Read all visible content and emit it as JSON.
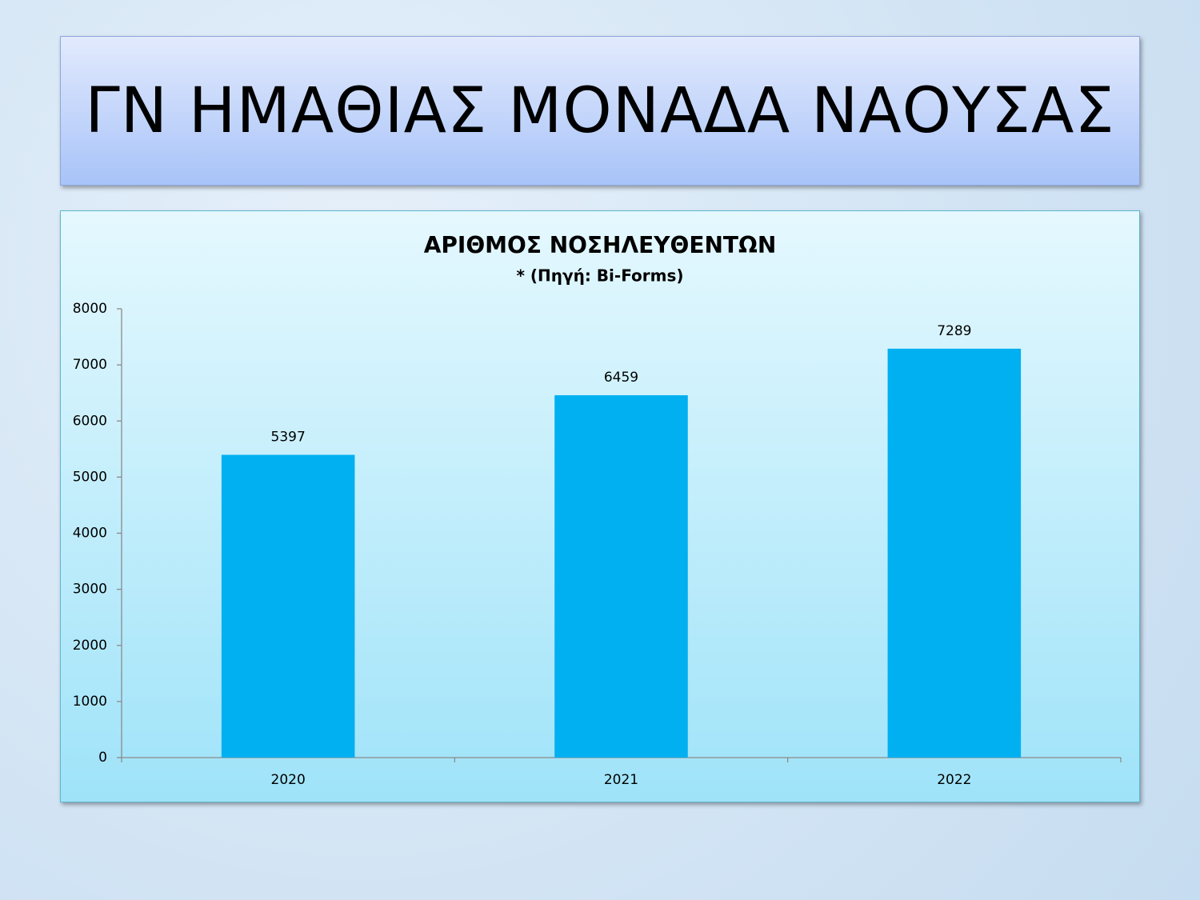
{
  "header": {
    "title": "ΓΝ ΗΜΑΘΙΑΣ ΜΟΝΑΔΑ ΝΑΟΥΣΑΣ"
  },
  "chart_data": {
    "type": "bar",
    "title": "ΑΡΙΘΜΟΣ ΝΟΣΗΛΕΥΘΕΝΤΩΝ",
    "subtitle": "* (Πηγή: Bi-Forms)",
    "categories": [
      "2020",
      "2021",
      "2022"
    ],
    "values": [
      5397,
      6459,
      7289
    ],
    "color": "#00b0f0",
    "ylim": [
      0,
      8000
    ],
    "yticks": [
      0,
      1000,
      2000,
      3000,
      4000,
      5000,
      6000,
      7000,
      8000
    ],
    "grid": false
  }
}
